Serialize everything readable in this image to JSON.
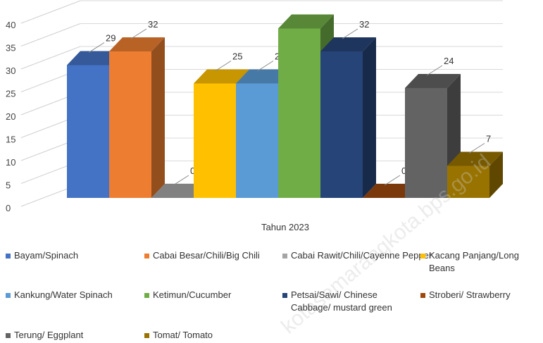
{
  "chart_data": {
    "type": "bar",
    "xlabel": "Tahun 2023",
    "ylim": [
      0,
      40
    ],
    "yticks": [
      0,
      5,
      10,
      15,
      20,
      25,
      30,
      35,
      40
    ],
    "grid": true,
    "legend_position": "bottom",
    "series": [
      {
        "name": "Bayam/Spinach",
        "value": 29,
        "label": "29",
        "color": "#4472C4"
      },
      {
        "name": "Cabai Besar/Chili/Big Chili",
        "value": 32,
        "label": "32",
        "color": "#ED7D31"
      },
      {
        "name": "Cabai Rawit/Chili/Cayenne Pepper",
        "value": 0,
        "label": "0",
        "color": "#A5A5A5"
      },
      {
        "name": "Kacang Panjang/Long Beans",
        "value": 25,
        "label": "25",
        "color": "#FFC000"
      },
      {
        "name": "Kankung/Water Spinach",
        "value": 25,
        "label": "25",
        "color": "#5B9BD5"
      },
      {
        "name": "Ketimun/Cucumber",
        "value": 37,
        "label": "",
        "color": "#70AD47"
      },
      {
        "name": "Petsai/Sawi/ Chinese Cabbage/ mustard green",
        "value": 32,
        "label": "32",
        "color": "#264478"
      },
      {
        "name": "Stroberi/ Strawberry",
        "value": 0,
        "label": "0",
        "color": "#9E480E"
      },
      {
        "name": "Terung/ Eggplant",
        "value": 24,
        "label": "24",
        "color": "#636363"
      },
      {
        "name": "Tomat/ Tomato",
        "value": 7,
        "label": "7",
        "color": "#997300"
      }
    ]
  },
  "watermark": "kotasemarangkota.bps.go.id"
}
